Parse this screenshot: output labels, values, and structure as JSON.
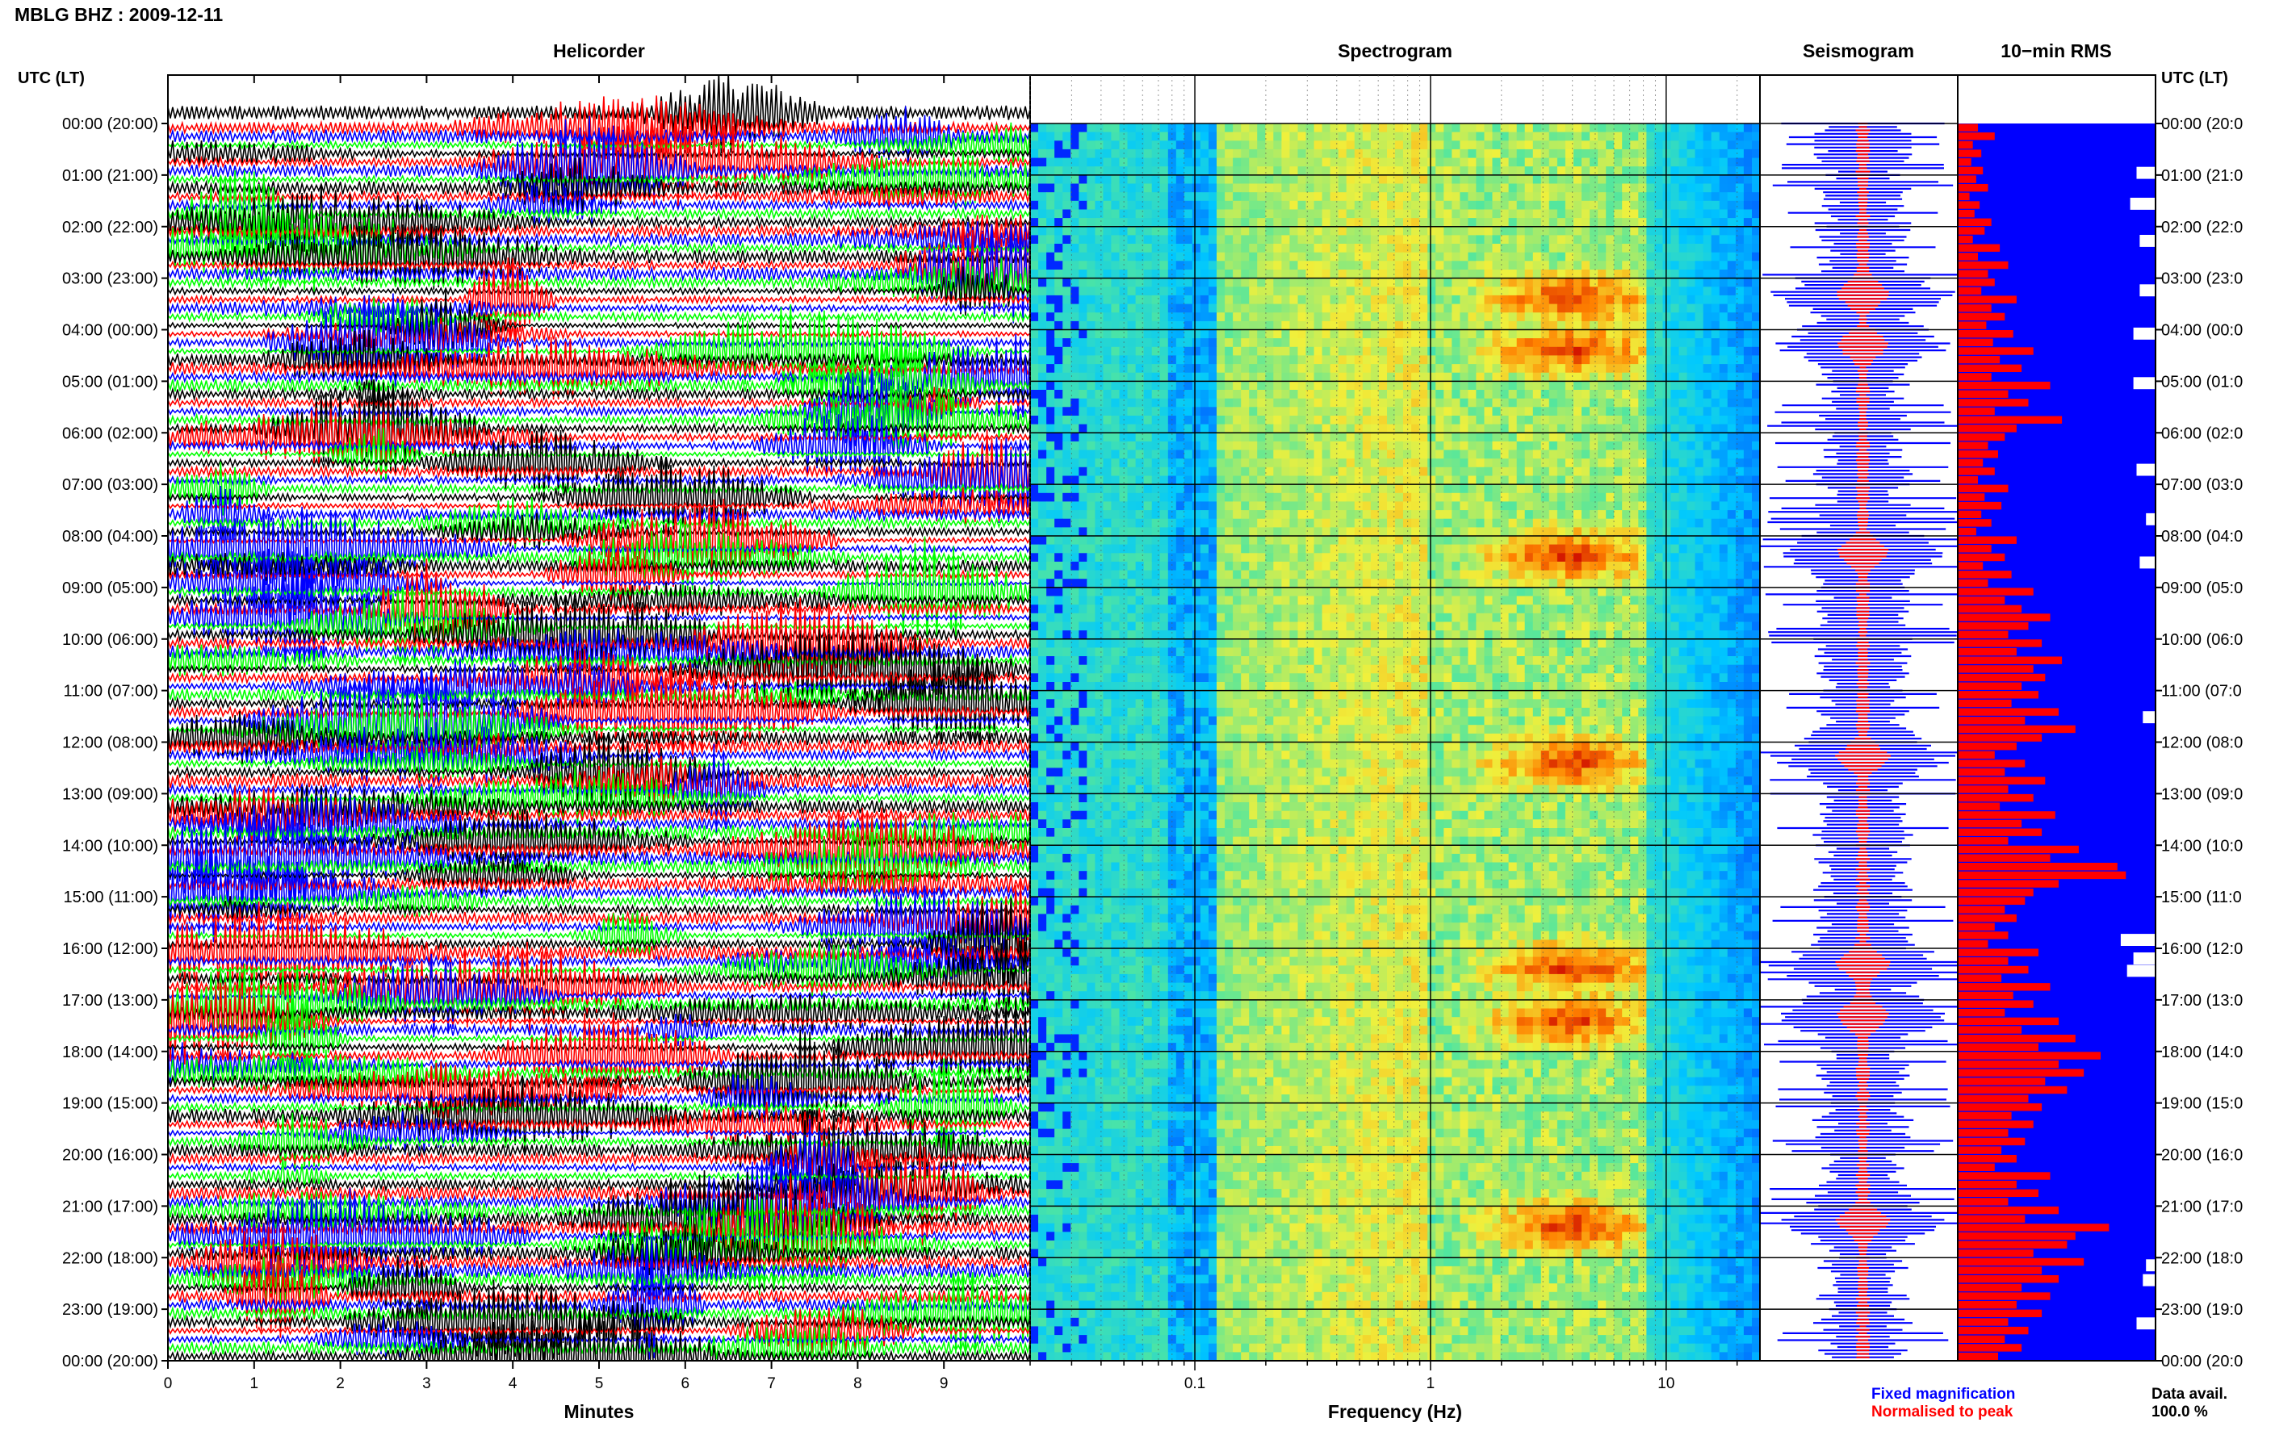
{
  "header": {
    "station_title": "MBLG BHZ : 2009-12-11",
    "utc_label_left": "UTC (LT)",
    "utc_label_right": "UTC (LT)"
  },
  "panels": {
    "helicorder": "Helicorder",
    "spectrogram": "Spectrogram",
    "seismogram": "Seismogram",
    "rms": "10−min RMS"
  },
  "time_labels": [
    "00:00 (20:00)",
    "01:00 (21:00)",
    "02:00 (22:00)",
    "03:00 (23:00)",
    "04:00 (00:00)",
    "05:00 (01:00)",
    "06:00 (02:00)",
    "07:00 (03:00)",
    "08:00 (04:00)",
    "09:00 (05:00)",
    "10:00 (06:00)",
    "11:00 (07:00)",
    "12:00 (08:00)",
    "13:00 (09:00)",
    "14:00 (10:00)",
    "15:00 (11:00)",
    "16:00 (12:00)",
    "17:00 (13:00)",
    "18:00 (14:00)",
    "19:00 (15:00)",
    "20:00 (16:00)",
    "21:00 (17:00)",
    "22:00 (18:00)",
    "23:00 (19:00)",
    "00:00 (20:00)"
  ],
  "time_labels_right": [
    "00:00 (20:0",
    "01:00 (21:0",
    "02:00 (22:0",
    "03:00 (23:0",
    "04:00 (00:0",
    "05:00 (01:0",
    "06:00 (02:0",
    "07:00 (03:0",
    "08:00 (04:0",
    "09:00 (05:0",
    "10:00 (06:0",
    "11:00 (07:0",
    "12:00 (08:0",
    "13:00 (09:0",
    "14:00 (10:0",
    "15:00 (11:0",
    "16:00 (12:0",
    "17:00 (13:0",
    "18:00 (14:0",
    "19:00 (15:0",
    "20:00 (16:0",
    "21:00 (17:0",
    "22:00 (18:0",
    "23:00 (19:0",
    "00:00 (20:0"
  ],
  "footer": {
    "minutes_label": "Minutes",
    "frequency_label": "Frequency (Hz)",
    "fixed_magnification": "Fixed magnification",
    "normalised_to_peak": "Normalised to peak",
    "data_avail_label": "Data avail.",
    "data_avail_value": "100.0 %"
  },
  "colors": {
    "trace_colors": [
      "#000000",
      "#ff0000",
      "#0000ff",
      "#00ff00"
    ],
    "fixed_magnification": "#0000ff",
    "normalised_to_peak": "#ff0000",
    "rms_background": "#0000ff",
    "rms_bars": "#ff0000"
  },
  "chart_data": [
    {
      "type": "line",
      "title": "Helicorder",
      "xlabel": "Minutes",
      "xlim": [
        0,
        10
      ],
      "x_ticks": [
        "0",
        "1",
        "2",
        "3",
        "4",
        "5",
        "6",
        "7",
        "8",
        "9"
      ],
      "rows_per_hour": 6,
      "hours": 24,
      "trace_color_cycle": [
        "black",
        "red",
        "blue",
        "green"
      ]
    },
    {
      "type": "heatmap",
      "title": "Spectrogram",
      "xlabel": "Frequency (Hz)",
      "x_scale": "log",
      "xlim": [
        0.02,
        25
      ],
      "x_ticks": [
        "0.1",
        "1",
        "10"
      ],
      "peak_energy_hours_utc": [
        "03:00",
        "04:00",
        "08:00",
        "12:00",
        "16:00",
        "17:00",
        "21:00"
      ],
      "peak_frequency_band_hz": [
        1,
        6
      ]
    },
    {
      "type": "line",
      "title": "Seismogram",
      "series": [
        {
          "name": "Fixed magnification",
          "color": "blue"
        },
        {
          "name": "Normalised to peak",
          "color": "red"
        }
      ]
    },
    {
      "type": "bar",
      "title": "10-min RMS",
      "orientation": "horizontal",
      "categories_count": 144,
      "values": [
        0.12,
        0.22,
        0.09,
        0.14,
        0.08,
        0.15,
        0.11,
        0.18,
        0.07,
        0.13,
        0.1,
        0.2,
        0.16,
        0.09,
        0.25,
        0.12,
        0.3,
        0.18,
        0.22,
        0.14,
        0.35,
        0.2,
        0.28,
        0.17,
        0.33,
        0.21,
        0.45,
        0.25,
        0.38,
        0.2,
        0.55,
        0.3,
        0.42,
        0.22,
        0.62,
        0.35,
        0.28,
        0.18,
        0.24,
        0.15,
        0.22,
        0.12,
        0.3,
        0.16,
        0.26,
        0.14,
        0.2,
        0.11,
        0.35,
        0.2,
        0.28,
        0.15,
        0.32,
        0.18,
        0.45,
        0.28,
        0.38,
        0.55,
        0.42,
        0.3,
        0.5,
        0.35,
        0.62,
        0.45,
        0.52,
        0.38,
        0.48,
        0.32,
        0.6,
        0.4,
        0.7,
        0.5,
        0.35,
        0.22,
        0.4,
        0.28,
        0.52,
        0.3,
        0.45,
        0.25,
        0.58,
        0.38,
        0.5,
        0.3,
        0.72,
        0.55,
        0.95,
        1.0,
        0.6,
        0.45,
        0.4,
        0.28,
        0.35,
        0.22,
        0.3,
        0.18,
        0.48,
        0.3,
        0.42,
        0.26,
        0.55,
        0.33,
        0.45,
        0.28,
        0.6,
        0.38,
        0.7,
        0.48,
        0.85,
        0.6,
        0.75,
        0.52,
        0.65,
        0.42,
        0.5,
        0.32,
        0.45,
        0.3,
        0.4,
        0.26,
        0.35,
        0.22,
        0.55,
        0.35,
        0.48,
        0.3,
        0.6,
        0.4,
        0.9,
        0.7,
        0.65,
        0.45,
        0.75,
        0.5,
        0.6,
        0.38,
        0.55,
        0.35,
        0.5,
        0.3,
        0.42,
        0.28,
        0.38,
        0.24
      ],
      "xlabel": "",
      "ylabel": ""
    }
  ]
}
